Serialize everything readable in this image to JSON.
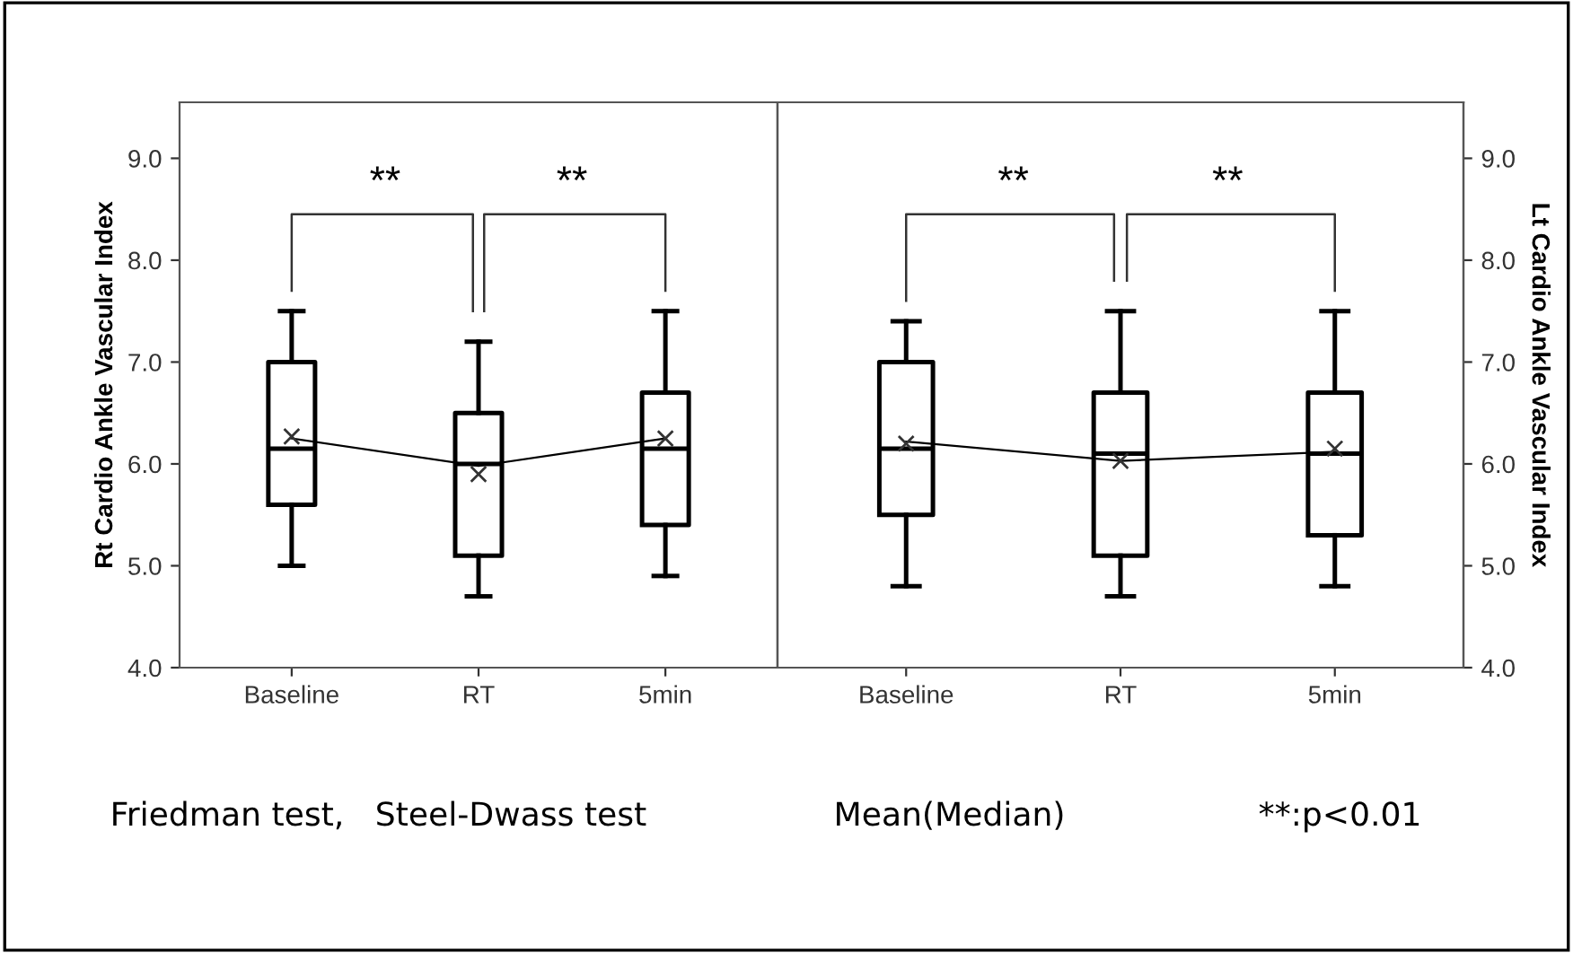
{
  "chart_data": [
    {
      "type": "box",
      "ylabel": "Rt Cardio Ankle Vascular Index",
      "categories": [
        "Baseline",
        "RT",
        "5min"
      ],
      "ylim": [
        4.0,
        9.55
      ],
      "yticks": [
        {
          "value": 4,
          "label": "4.0"
        },
        {
          "value": 5,
          "label": "5.0"
        },
        {
          "value": 6,
          "label": "6.0"
        },
        {
          "value": 7,
          "label": "7.0"
        },
        {
          "value": 8,
          "label": "8.0"
        },
        {
          "value": 9,
          "label": "9.0"
        }
      ],
      "boxes": [
        {
          "low": 5.0,
          "q1": 5.6,
          "median": 6.15,
          "q3": 7.0,
          "high": 7.5,
          "mean": 6.27
        },
        {
          "low": 4.7,
          "q1": 5.1,
          "median": 6.0,
          "q3": 6.5,
          "high": 7.2,
          "mean": 5.9
        },
        {
          "low": 4.9,
          "q1": 5.4,
          "median": 6.15,
          "q3": 6.7,
          "high": 7.5,
          "mean": 6.25
        }
      ],
      "series": [
        {
          "type": "line",
          "color": "#000000",
          "values": [
            6.25,
            5.98,
            6.25
          ]
        }
      ],
      "annotations": [
        "**",
        "**",
        "Friedman test,   Steel-Dwass test",
        "Mean(Median)",
        "**:p<0.01"
      ]
    },
    {
      "type": "box",
      "y2label": "Lt Cardio Ankle Vascular Index",
      "categories": [
        "Baseline",
        "RT",
        "5min"
      ],
      "y2lim": [
        4.0,
        9.55
      ],
      "y2ticks": [
        {
          "value": 4,
          "label": "4.0"
        },
        {
          "value": 5,
          "label": "5.0"
        },
        {
          "value": 6,
          "label": "6.0"
        },
        {
          "value": 7,
          "label": "7.0"
        },
        {
          "value": 8,
          "label": "8.0"
        },
        {
          "value": 9,
          "label": "9.0"
        }
      ],
      "series": [
        {
          "type": "box",
          "axis": "y2",
          "boxes": [
            {
              "low": 4.8,
              "q1": 5.5,
              "median": 6.15,
              "q3": 7.0,
              "high": 7.4,
              "mean": 6.2
            },
            {
              "low": 4.7,
              "q1": 5.1,
              "median": 6.1,
              "q3": 6.7,
              "high": 7.5,
              "mean": 6.03
            },
            {
              "low": 4.8,
              "q1": 5.3,
              "median": 6.1,
              "q3": 6.7,
              "high": 7.5,
              "mean": 6.15
            }
          ]
        },
        {
          "type": "line",
          "axis": "y2",
          "color": "#000000",
          "values": [
            6.22,
            6.03,
            6.12
          ]
        }
      ],
      "annotations": [
        "**",
        "**"
      ]
    }
  ]
}
